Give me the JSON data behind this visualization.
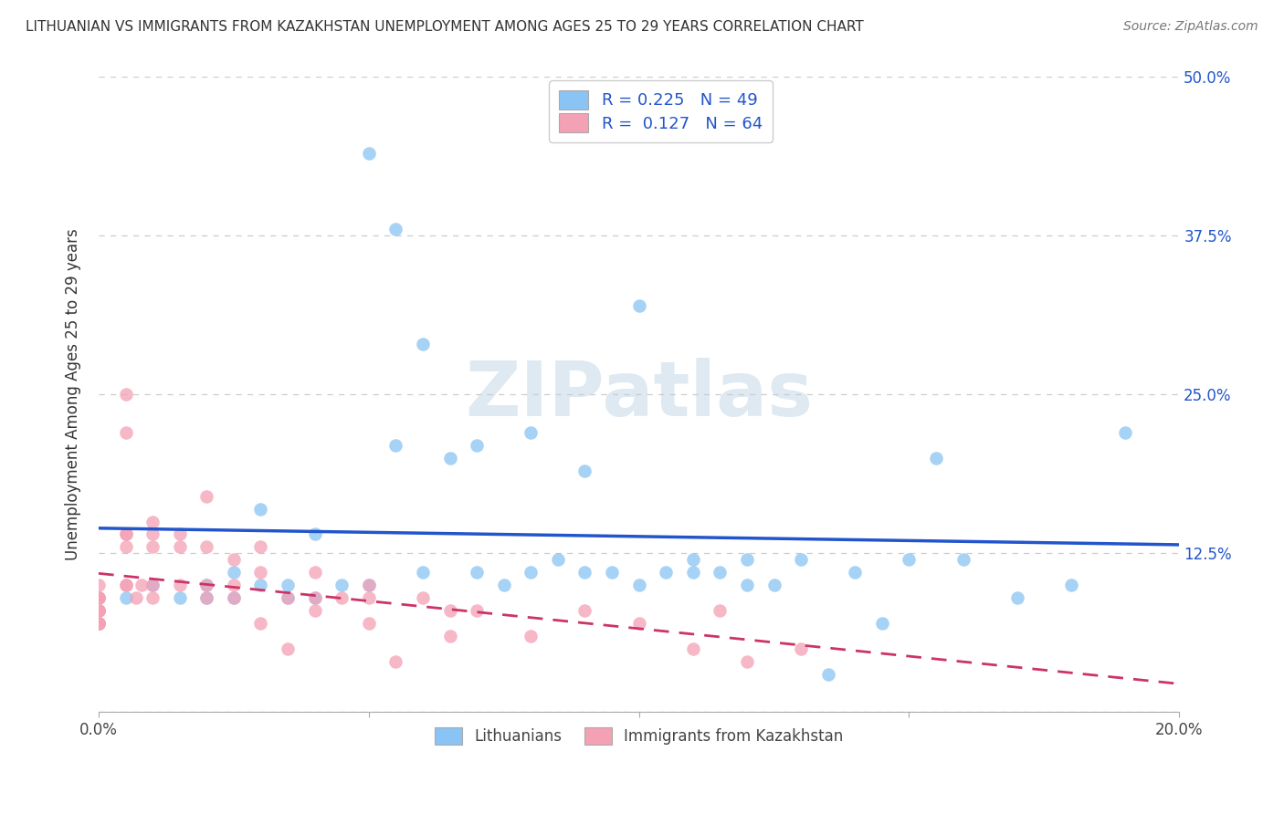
{
  "title": "LITHUANIAN VS IMMIGRANTS FROM KAZAKHSTAN UNEMPLOYMENT AMONG AGES 25 TO 29 YEARS CORRELATION CHART",
  "source": "Source: ZipAtlas.com",
  "ylabel": "Unemployment Among Ages 25 to 29 years",
  "watermark": "ZIPatlas",
  "xlim": [
    0.0,
    0.2
  ],
  "ylim": [
    0.0,
    0.5
  ],
  "xticks": [
    0.0,
    0.05,
    0.1,
    0.15,
    0.2
  ],
  "xtick_labels": [
    "0.0%",
    "",
    "",
    "",
    "20.0%"
  ],
  "ytick_labels": [
    "",
    "12.5%",
    "25.0%",
    "37.5%",
    "50.0%"
  ],
  "yticks": [
    0.0,
    0.125,
    0.25,
    0.375,
    0.5
  ],
  "blue_color": "#89c4f4",
  "pink_color": "#f4a0b5",
  "blue_line_color": "#2255cc",
  "pink_line_color": "#cc3366",
  "legend_bottom_blue": "Lithuanians",
  "legend_bottom_pink": "Immigrants from Kazakhstan",
  "blue_x": [
    0.005,
    0.01,
    0.015,
    0.02,
    0.02,
    0.025,
    0.025,
    0.03,
    0.03,
    0.035,
    0.035,
    0.04,
    0.04,
    0.045,
    0.05,
    0.05,
    0.055,
    0.055,
    0.06,
    0.06,
    0.065,
    0.07,
    0.07,
    0.075,
    0.08,
    0.08,
    0.085,
    0.09,
    0.09,
    0.095,
    0.1,
    0.1,
    0.105,
    0.11,
    0.11,
    0.115,
    0.12,
    0.12,
    0.125,
    0.13,
    0.135,
    0.14,
    0.145,
    0.15,
    0.155,
    0.16,
    0.17,
    0.18,
    0.19
  ],
  "blue_y": [
    0.09,
    0.1,
    0.09,
    0.1,
    0.09,
    0.11,
    0.09,
    0.1,
    0.16,
    0.09,
    0.1,
    0.09,
    0.14,
    0.1,
    0.44,
    0.1,
    0.38,
    0.21,
    0.29,
    0.11,
    0.2,
    0.21,
    0.11,
    0.1,
    0.22,
    0.11,
    0.12,
    0.11,
    0.19,
    0.11,
    0.1,
    0.32,
    0.11,
    0.11,
    0.12,
    0.11,
    0.1,
    0.12,
    0.1,
    0.12,
    0.03,
    0.11,
    0.07,
    0.12,
    0.2,
    0.12,
    0.09,
    0.1,
    0.22
  ],
  "pink_x": [
    0.0,
    0.0,
    0.0,
    0.0,
    0.0,
    0.0,
    0.0,
    0.0,
    0.0,
    0.0,
    0.0,
    0.0,
    0.0,
    0.0,
    0.0,
    0.0,
    0.005,
    0.005,
    0.005,
    0.005,
    0.005,
    0.005,
    0.005,
    0.007,
    0.008,
    0.01,
    0.01,
    0.01,
    0.01,
    0.01,
    0.015,
    0.015,
    0.015,
    0.02,
    0.02,
    0.02,
    0.02,
    0.025,
    0.025,
    0.025,
    0.03,
    0.03,
    0.03,
    0.035,
    0.035,
    0.04,
    0.04,
    0.04,
    0.045,
    0.05,
    0.05,
    0.05,
    0.055,
    0.06,
    0.065,
    0.065,
    0.07,
    0.08,
    0.09,
    0.1,
    0.11,
    0.115,
    0.12,
    0.13
  ],
  "pink_y": [
    0.08,
    0.07,
    0.08,
    0.09,
    0.07,
    0.08,
    0.07,
    0.09,
    0.08,
    0.07,
    0.09,
    0.08,
    0.09,
    0.07,
    0.07,
    0.1,
    0.25,
    0.22,
    0.14,
    0.13,
    0.1,
    0.14,
    0.1,
    0.09,
    0.1,
    0.15,
    0.14,
    0.09,
    0.1,
    0.13,
    0.14,
    0.13,
    0.1,
    0.17,
    0.1,
    0.13,
    0.09,
    0.09,
    0.12,
    0.1,
    0.11,
    0.13,
    0.07,
    0.09,
    0.05,
    0.09,
    0.11,
    0.08,
    0.09,
    0.09,
    0.07,
    0.1,
    0.04,
    0.09,
    0.06,
    0.08,
    0.08,
    0.06,
    0.08,
    0.07,
    0.05,
    0.08,
    0.04,
    0.05
  ]
}
